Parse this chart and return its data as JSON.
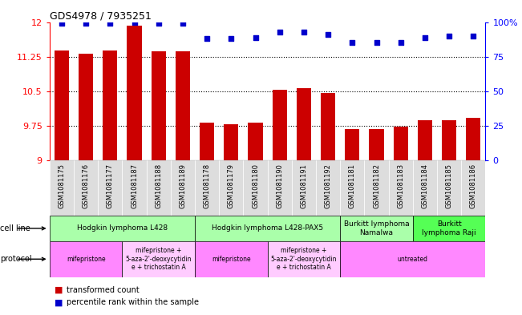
{
  "title": "GDS4978 / 7935251",
  "samples": [
    "GSM1081175",
    "GSM1081176",
    "GSM1081177",
    "GSM1081187",
    "GSM1081188",
    "GSM1081189",
    "GSM1081178",
    "GSM1081179",
    "GSM1081180",
    "GSM1081190",
    "GSM1081191",
    "GSM1081192",
    "GSM1081181",
    "GSM1081182",
    "GSM1081183",
    "GSM1081184",
    "GSM1081185",
    "GSM1081186"
  ],
  "bar_values": [
    11.38,
    11.32,
    11.38,
    11.92,
    11.37,
    11.37,
    9.82,
    9.78,
    9.83,
    10.54,
    10.57,
    10.46,
    9.68,
    9.68,
    9.73,
    9.88,
    9.88,
    9.92
  ],
  "dot_values": [
    99,
    99,
    99,
    100,
    99,
    99,
    88,
    88,
    89,
    93,
    93,
    91,
    85,
    85,
    85,
    89,
    90,
    90
  ],
  "ymin": 9,
  "ymax": 12,
  "yticks": [
    9,
    9.75,
    10.5,
    11.25,
    12
  ],
  "y2ticks": [
    0,
    25,
    50,
    75,
    100
  ],
  "bar_color": "#cc0000",
  "dot_color": "#0000cc",
  "bar_bottom": 9,
  "cell_line_groups": [
    {
      "label": "Hodgkin lymphoma L428",
      "start": 0,
      "end": 5,
      "color": "#aaffaa"
    },
    {
      "label": "Hodgkin lymphoma L428-PAX5",
      "start": 6,
      "end": 11,
      "color": "#aaffaa"
    },
    {
      "label": "Burkitt lymphoma\nNamalwa",
      "start": 12,
      "end": 14,
      "color": "#aaffaa"
    },
    {
      "label": "Burkitt\nlymphoma Raji",
      "start": 15,
      "end": 17,
      "color": "#55ff55"
    }
  ],
  "protocol_groups": [
    {
      "label": "mifepristone",
      "start": 0,
      "end": 2,
      "color": "#ff88ff"
    },
    {
      "label": "mifepristone +\n5-aza-2'-deoxycytidin\ne + trichostatin A",
      "start": 3,
      "end": 5,
      "color": "#ffccff"
    },
    {
      "label": "mifepristone",
      "start": 6,
      "end": 8,
      "color": "#ff88ff"
    },
    {
      "label": "mifepristone +\n5-aza-2'-deoxycytidin\ne + trichostatin A",
      "start": 9,
      "end": 11,
      "color": "#ffccff"
    },
    {
      "label": "untreated",
      "start": 12,
      "end": 17,
      "color": "#ff88ff"
    }
  ],
  "legend_bar_label": "transformed count",
  "legend_dot_label": "percentile rank within the sample",
  "cell_line_label": "cell line",
  "protocol_label": "protocol"
}
